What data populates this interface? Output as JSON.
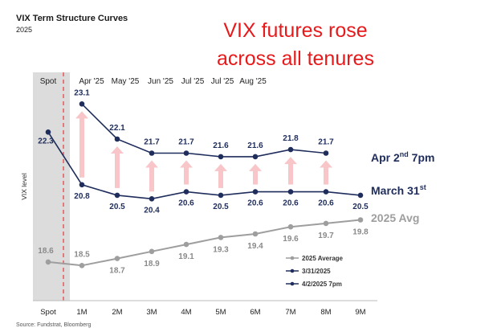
{
  "chart_data": {
    "type": "line",
    "title": "VIX Term Structure Curves",
    "subtitle": "2025",
    "headline": [
      "VIX futures rose",
      "across all tenures"
    ],
    "ylabel": "VIX level",
    "source": "Source: Fundstrat, Bloomberg",
    "categories": [
      "Spot",
      "1M",
      "2M",
      "3M",
      "4M",
      "5M",
      "6M",
      "7M",
      "8M",
      "9M"
    ],
    "month_labels": [
      "Spot",
      "Apr '25",
      "May '25",
      "Jun '25",
      "Jul '25",
      "Jul '25",
      "Aug '25"
    ],
    "ylim": [
      17.5,
      24
    ],
    "series": [
      {
        "name": "2025 Average",
        "end_label": "2025 Avg",
        "color": "#9e9e9e",
        "values": [
          18.6,
          18.5,
          18.7,
          18.9,
          19.1,
          19.3,
          19.4,
          19.6,
          19.7,
          19.8
        ]
      },
      {
        "name": "3/31/2025",
        "end_label": "March 31",
        "end_label_sup": "st",
        "color": "#1f2d5c",
        "values": [
          22.3,
          20.8,
          20.5,
          20.4,
          20.6,
          20.5,
          20.6,
          20.6,
          20.6,
          20.5
        ]
      },
      {
        "name": "4/2/2025 7pm",
        "end_label": "Apr 2",
        "end_label_sup": "nd",
        "end_label_tail": " 7pm",
        "color": "#1f2d5c",
        "values": [
          null,
          23.1,
          22.1,
          21.7,
          21.7,
          21.6,
          21.6,
          21.8,
          21.7,
          null
        ]
      }
    ],
    "legend": {
      "position": "bottom-right",
      "entries": [
        "2025 Average",
        "3/31/2025",
        "4/2/2025 7pm"
      ]
    },
    "arrow_color": "#f8c6c9"
  }
}
